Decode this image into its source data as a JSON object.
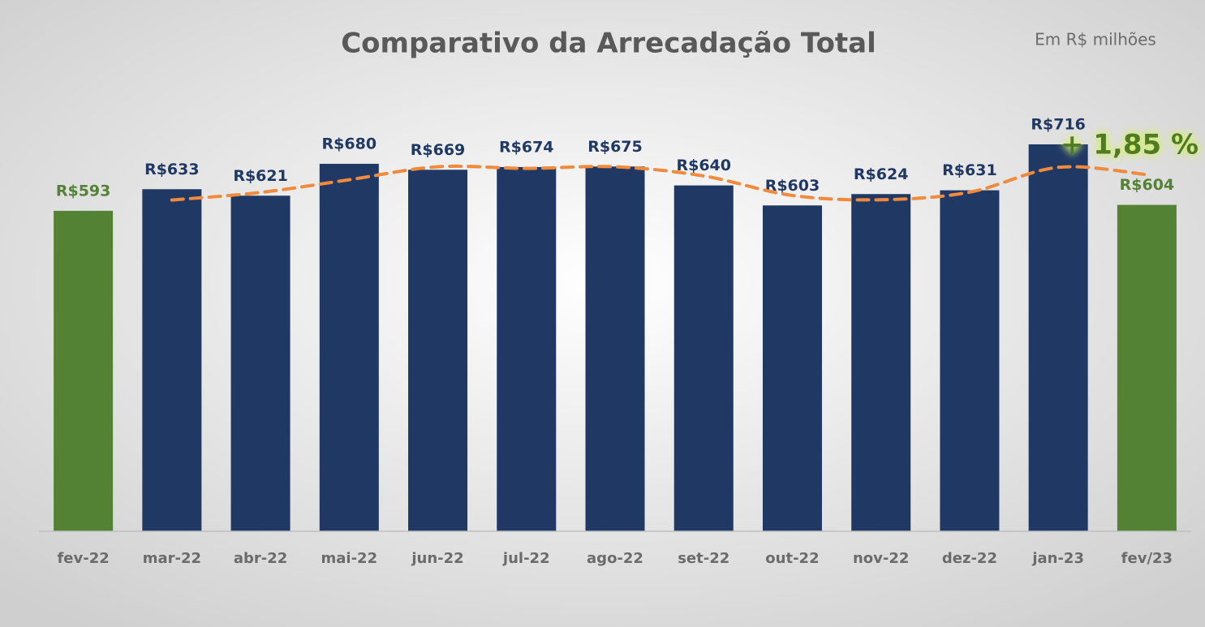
{
  "chart_data": {
    "type": "bar",
    "title": "Comparativo da Arrecadação Total",
    "subtitle": "Em R$ milhões",
    "annotation": "+ 1,85 %",
    "categories": [
      "fev-22",
      "mar-22",
      "abr-22",
      "mai-22",
      "jun-22",
      "jul-22",
      "ago-22",
      "set-22",
      "out-22",
      "nov-22",
      "dez-22",
      "jan-23",
      "fev/23"
    ],
    "values": [
      593,
      633,
      621,
      680,
      669,
      674,
      675,
      640,
      603,
      624,
      631,
      716,
      604
    ],
    "value_labels": [
      "R$593",
      "R$633",
      "R$621",
      "R$680",
      "R$669",
      "R$674",
      "R$675",
      "R$640",
      "R$603",
      "R$624",
      "R$631",
      "R$716",
      "R$604"
    ],
    "colors": [
      "#548235",
      "#203864",
      "#203864",
      "#203864",
      "#203864",
      "#203864",
      "#203864",
      "#203864",
      "#203864",
      "#203864",
      "#203864",
      "#203864",
      "#548235"
    ],
    "trendline": {
      "color": "#f08a3c",
      "values": [
        null,
        613,
        627,
        650.5,
        674.5,
        671.5,
        674.5,
        657.5,
        621.5,
        613.5,
        627.5,
        673.5,
        660
      ]
    },
    "ylim": [
      0,
      800
    ]
  }
}
